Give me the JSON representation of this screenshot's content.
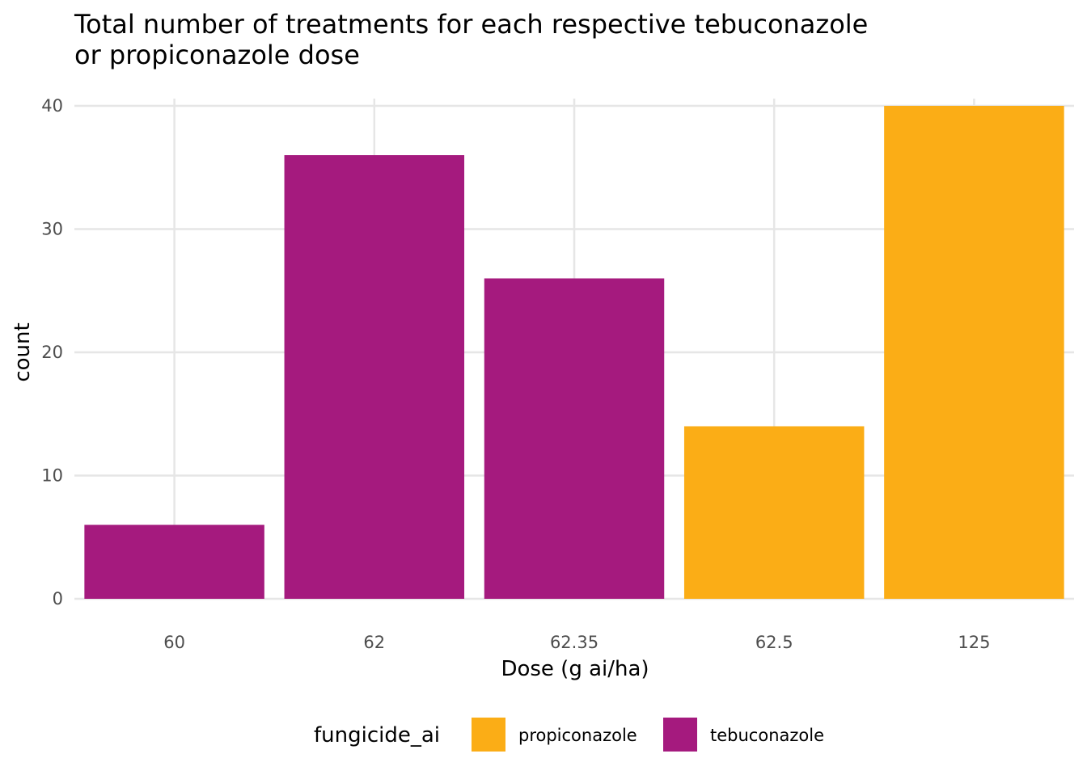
{
  "chart_data": {
    "type": "bar",
    "title_lines": [
      "Total number of treatments for each respective tebuconazole",
      "or propiconazole dose"
    ],
    "xlabel": "Dose (g ai/ha)",
    "ylabel": "count",
    "categories": [
      "60",
      "62",
      "62.35",
      "62.5",
      "125"
    ],
    "values": [
      6,
      36,
      26,
      14,
      40
    ],
    "bar_series": [
      "tebuconazole",
      "tebuconazole",
      "tebuconazole",
      "propiconazole",
      "propiconazole"
    ],
    "ylim": [
      0,
      40
    ],
    "yticks": [
      0,
      10,
      20,
      30,
      40
    ],
    "grid": true,
    "legend": {
      "title": "fungicide_ai",
      "position": "bottom",
      "entries": [
        {
          "name": "propiconazole",
          "color": "#FBAD16"
        },
        {
          "name": "tebuconazole",
          "color": "#A51A7E"
        }
      ]
    }
  }
}
